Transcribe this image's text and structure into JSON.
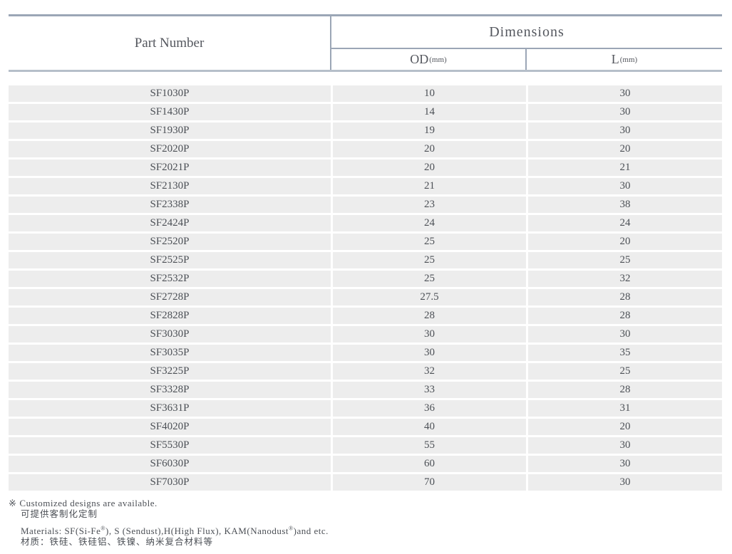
{
  "table": {
    "header": {
      "part_number": "Part Number",
      "dimensions": "Dimensions",
      "od": "OD",
      "od_unit": "(mm)",
      "l": "L",
      "l_unit": "(mm)"
    },
    "rows": [
      {
        "part": "SF1030P",
        "od": "10",
        "l": "30"
      },
      {
        "part": "SF1430P",
        "od": "14",
        "l": "30"
      },
      {
        "part": "SF1930P",
        "od": "19",
        "l": "30"
      },
      {
        "part": "SF2020P",
        "od": "20",
        "l": "20"
      },
      {
        "part": "SF2021P",
        "od": "20",
        "l": "21"
      },
      {
        "part": "SF2130P",
        "od": "21",
        "l": "30"
      },
      {
        "part": "SF2338P",
        "od": "23",
        "l": "38"
      },
      {
        "part": "SF2424P",
        "od": "24",
        "l": "24"
      },
      {
        "part": "SF2520P",
        "od": "25",
        "l": "20"
      },
      {
        "part": "SF2525P",
        "od": "25",
        "l": "25"
      },
      {
        "part": "SF2532P",
        "od": "25",
        "l": "32"
      },
      {
        "part": "SF2728P",
        "od": "27.5",
        "l": "28"
      },
      {
        "part": "SF2828P",
        "od": "28",
        "l": "28"
      },
      {
        "part": "SF3030P",
        "od": "30",
        "l": "30"
      },
      {
        "part": "SF3035P",
        "od": "30",
        "l": "35"
      },
      {
        "part": "SF3225P",
        "od": "32",
        "l": "25"
      },
      {
        "part": "SF3328P",
        "od": "33",
        "l": "28"
      },
      {
        "part": "SF3631P",
        "od": "36",
        "l": "31"
      },
      {
        "part": "SF4020P",
        "od": "40",
        "l": "20"
      },
      {
        "part": "SF5530P",
        "od": "55",
        "l": "30"
      },
      {
        "part": "SF6030P",
        "od": "60",
        "l": "30"
      },
      {
        "part": "SF7030P",
        "od": "70",
        "l": "30"
      }
    ]
  },
  "footnotes": {
    "marker": "※",
    "customized_en": "Customized designs are available.",
    "customized_zh": "可提供客制化定制",
    "materials_parts": [
      "Materials: SF(Si-Fe",
      "®",
      "), S (Sendust),H(High Flux), KAM(Nanodust",
      "®",
      ")and etc."
    ],
    "materials_zh": "材质：铁硅、铁硅铝、铁镍、纳米复合材料等"
  },
  "colors": {
    "border_dark": "#9ba6b6",
    "border_light": "#b6bfca",
    "row_background": "#ededed",
    "text": "#4c5056"
  }
}
